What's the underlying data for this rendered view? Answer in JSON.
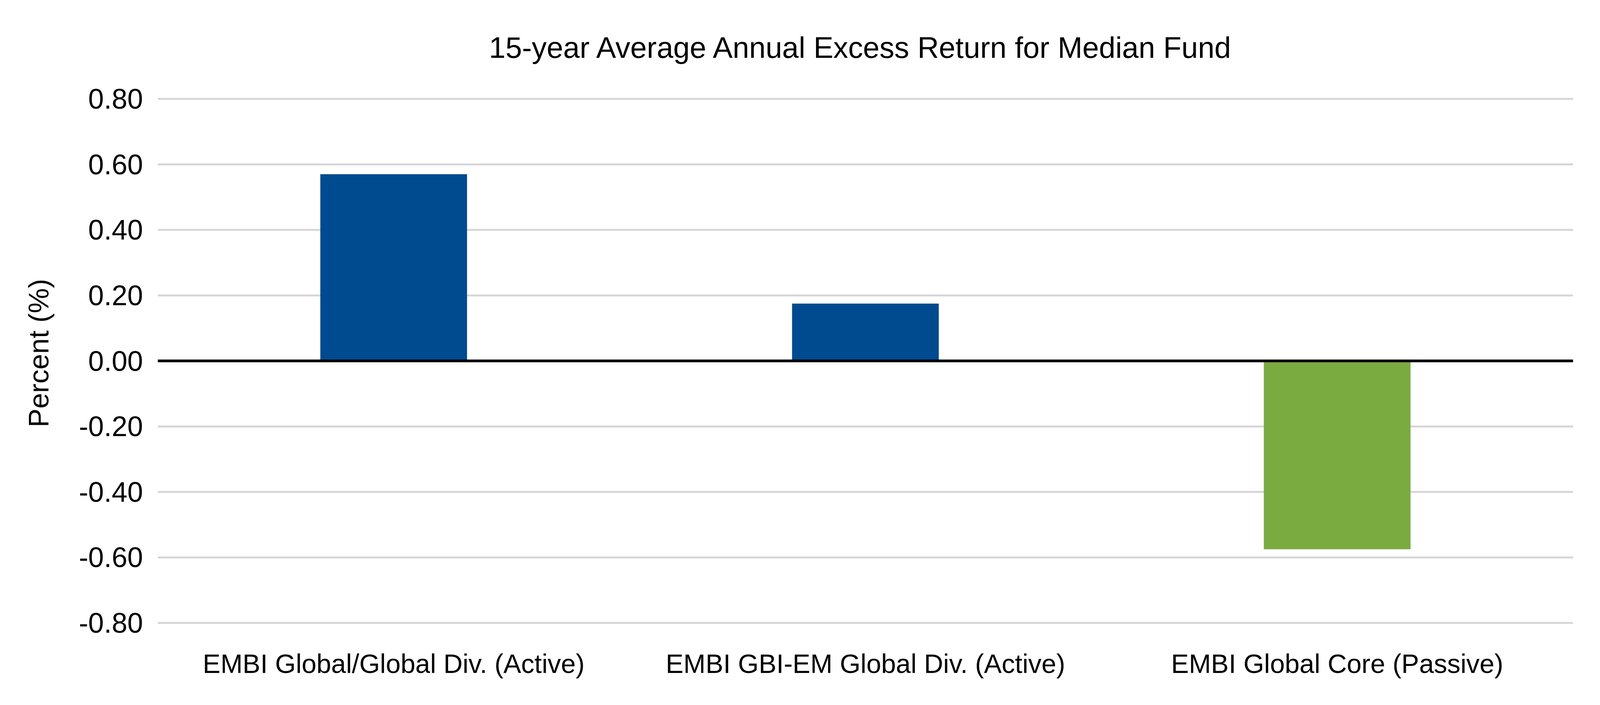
{
  "chart_data": {
    "type": "bar",
    "title": "15-year Average Annual Excess Return for Median Fund",
    "y_label": "Percent (%)",
    "categories": [
      "EMBI Global/Global Div. (Active)",
      "EMBI GBI-EM Global Div. (Active)",
      "EMBI Global Core (Passive)"
    ],
    "values": [
      0.57,
      0.175,
      -0.575
    ],
    "colors": [
      "#004a8f",
      "#004a8f",
      "#7aab40"
    ],
    "ylim": [
      -0.8,
      0.8
    ],
    "yticks": [
      {
        "value": -0.8,
        "label": "-0.80"
      },
      {
        "value": -0.6,
        "label": "-0.60"
      },
      {
        "value": -0.4,
        "label": "-0.40"
      },
      {
        "value": -0.2,
        "label": "-0.20"
      },
      {
        "value": 0,
        "label": "0.00"
      },
      {
        "value": 0.2,
        "label": "0.20"
      },
      {
        "value": 0.4,
        "label": "0.40"
      },
      {
        "value": 0.6,
        "label": "0.60"
      },
      {
        "value": 0.8,
        "label": "0.80"
      }
    ],
    "grid": true
  }
}
